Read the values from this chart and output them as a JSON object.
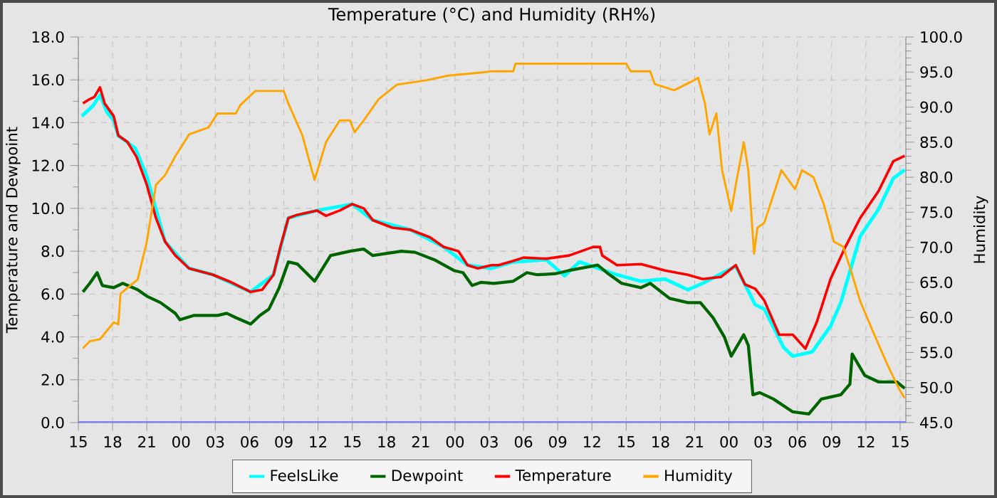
{
  "chart_data": {
    "type": "line",
    "title": "Temperature (°C) and Humidity (RH%)",
    "ylabel": "Temperature and Dewpoint",
    "y2label": "Humidity",
    "grid": true,
    "legend": "bottom",
    "marker": "none",
    "xlim": [
      15,
      87.5
    ],
    "xticks": [
      {
        "value": 15,
        "label": "15"
      },
      {
        "value": 18,
        "label": "18"
      },
      {
        "value": 21,
        "label": "21"
      },
      {
        "value": 24,
        "label": "00"
      },
      {
        "value": 27,
        "label": "03"
      },
      {
        "value": 30,
        "label": "06"
      },
      {
        "value": 33,
        "label": "09"
      },
      {
        "value": 36,
        "label": "12"
      },
      {
        "value": 39,
        "label": "15"
      },
      {
        "value": 42,
        "label": "18"
      },
      {
        "value": 45,
        "label": "21"
      },
      {
        "value": 48,
        "label": "00"
      },
      {
        "value": 51,
        "label": "03"
      },
      {
        "value": 54,
        "label": "06"
      },
      {
        "value": 57,
        "label": "09"
      },
      {
        "value": 60,
        "label": "12"
      },
      {
        "value": 63,
        "label": "15"
      },
      {
        "value": 66,
        "label": "18"
      },
      {
        "value": 69,
        "label": "21"
      },
      {
        "value": 72,
        "label": "00"
      },
      {
        "value": 75,
        "label": "03"
      },
      {
        "value": 78,
        "label": "06"
      },
      {
        "value": 81,
        "label": "09"
      },
      {
        "value": 84,
        "label": "12"
      },
      {
        "value": 87,
        "label": "15"
      }
    ],
    "ylim": [
      0,
      18
    ],
    "yticks": [
      {
        "value": 0,
        "label": "0.0"
      },
      {
        "value": 2,
        "label": "2.0"
      },
      {
        "value": 4,
        "label": "4.0"
      },
      {
        "value": 6,
        "label": "6.0"
      },
      {
        "value": 8,
        "label": "8.0"
      },
      {
        "value": 10,
        "label": "10.0"
      },
      {
        "value": 12,
        "label": "12.0"
      },
      {
        "value": 14,
        "label": "14.0"
      },
      {
        "value": 16,
        "label": "16.0"
      },
      {
        "value": 18,
        "label": "18.0"
      }
    ],
    "y2lim": [
      45,
      100
    ],
    "y2ticks": [
      {
        "value": 45,
        "label": "45.0"
      },
      {
        "value": 50,
        "label": "50.0"
      },
      {
        "value": 55,
        "label": "55.0"
      },
      {
        "value": 60,
        "label": "60.0"
      },
      {
        "value": 65,
        "label": "65.0"
      },
      {
        "value": 70,
        "label": "70.0"
      },
      {
        "value": 75,
        "label": "75.0"
      },
      {
        "value": 80,
        "label": "80.0"
      },
      {
        "value": 85,
        "label": "85.0"
      },
      {
        "value": 90,
        "label": "90.0"
      },
      {
        "value": 95,
        "label": "95.0"
      },
      {
        "value": 100,
        "label": "100.0"
      }
    ],
    "ref_lines": [
      {
        "axis": "y",
        "value": 0,
        "color": "#8080ff"
      }
    ],
    "series": [
      {
        "name": "FeelsLike",
        "color": "#00ffff",
        "x": [
          15.3,
          16.3,
          16.9,
          17.5,
          18.1,
          18.5,
          20,
          21,
          22.6,
          24.7,
          26.8,
          30.1,
          32.1,
          33.4,
          35.9,
          39,
          40.8,
          44.1,
          47,
          49.1,
          51.2,
          53.1,
          56,
          57.6,
          58.9,
          62.2,
          64.3,
          66.4,
          68.4,
          69.7,
          72.6,
          74.3,
          75.1,
          76.8,
          77.6,
          79.3,
          80.9,
          81.8,
          83.5,
          85.1,
          86.4,
          87.4
        ],
        "values": [
          14.3,
          14.8,
          15.3,
          14.5,
          14.1,
          13.4,
          12.8,
          11.5,
          8.45,
          7.2,
          6.9,
          6.1,
          6.9,
          9.55,
          9.9,
          10.2,
          9.45,
          9.0,
          8.2,
          7.35,
          7.2,
          7.5,
          7.6,
          6.85,
          7.5,
          6.9,
          6.6,
          6.7,
          6.2,
          6.5,
          7.3,
          5.5,
          5.3,
          3.5,
          3.1,
          3.3,
          4.5,
          5.6,
          8.7,
          9.95,
          11.4,
          11.8
        ]
      },
      {
        "name": "Dewpoint",
        "color": "#006400",
        "x": [
          15.4,
          16,
          16.65,
          17.1,
          18.1,
          18.9,
          20.2,
          21,
          22.2,
          23.5,
          23.9,
          25.1,
          27.2,
          28,
          28.8,
          30.1,
          30.9,
          31.7,
          32.6,
          33.4,
          34.2,
          35.7,
          37.1,
          38.8,
          40,
          40.8,
          43.3,
          44.5,
          46.2,
          47.9,
          48.7,
          49.5,
          50.3,
          51.4,
          53.1,
          54.3,
          55.2,
          56.8,
          58,
          60.5,
          61.3,
          62.6,
          64.3,
          65.1,
          66.8,
          68.4,
          69.5,
          70.6,
          71.6,
          72.2,
          73.3,
          73.7,
          74.1,
          74.7,
          75.9,
          77.6,
          79,
          80.1,
          81.8,
          82.6,
          82.8,
          83.9,
          85.1,
          86.7,
          87.4
        ],
        "values": [
          6.1,
          6.5,
          7.0,
          6.4,
          6.3,
          6.5,
          6.2,
          5.9,
          5.6,
          5.1,
          4.8,
          5.0,
          5.0,
          5.1,
          4.9,
          4.6,
          5.0,
          5.3,
          6.3,
          7.5,
          7.4,
          6.6,
          7.8,
          8.0,
          8.1,
          7.8,
          8.0,
          7.95,
          7.6,
          7.1,
          7.0,
          6.4,
          6.55,
          6.5,
          6.6,
          7.0,
          6.9,
          6.95,
          7.1,
          7.35,
          7.0,
          6.5,
          6.3,
          6.5,
          5.8,
          5.6,
          5.6,
          4.9,
          4.0,
          3.1,
          4.1,
          3.6,
          1.3,
          1.4,
          1.1,
          0.5,
          0.4,
          1.1,
          1.3,
          1.8,
          3.2,
          2.2,
          1.9,
          1.9,
          1.6
        ]
      },
      {
        "name": "Temperature",
        "color": "#ff0000",
        "x": [
          15.4,
          16,
          16.4,
          16.9,
          17.3,
          18.1,
          18.5,
          19.3,
          20.1,
          21,
          21.8,
          22.6,
          23.5,
          24.7,
          26.8,
          28.4,
          30.1,
          31.1,
          32.1,
          32.7,
          33.4,
          34.2,
          35.9,
          36.7,
          37.9,
          39,
          40,
          40.8,
          42.5,
          44.1,
          45.8,
          47,
          48.3,
          49.1,
          50,
          51.2,
          51.8,
          53.1,
          54,
          56,
          58,
          60.1,
          60.7,
          60.9,
          62.2,
          64.3,
          66.4,
          68.4,
          69.7,
          71.3,
          72.6,
          73.4,
          74.3,
          75.1,
          76.4,
          77.6,
          78.7,
          79.7,
          80.9,
          82.2,
          83.5,
          85.1,
          86.4,
          87.4
        ],
        "values": [
          14.9,
          15.1,
          15.2,
          15.65,
          14.9,
          14.3,
          13.4,
          13.1,
          12.4,
          11.1,
          9.55,
          8.45,
          7.8,
          7.2,
          6.9,
          6.55,
          6.1,
          6.2,
          6.9,
          8.2,
          9.55,
          9.7,
          9.9,
          9.65,
          9.9,
          10.2,
          10.0,
          9.45,
          9.1,
          9.0,
          8.65,
          8.2,
          8.0,
          7.35,
          7.2,
          7.35,
          7.35,
          7.55,
          7.7,
          7.65,
          7.8,
          8.2,
          8.2,
          7.8,
          7.35,
          7.4,
          7.1,
          6.9,
          6.7,
          6.8,
          7.35,
          6.45,
          6.25,
          5.7,
          4.1,
          4.1,
          3.45,
          4.7,
          6.7,
          8.2,
          9.55,
          10.8,
          12.2,
          12.45
        ]
      },
      {
        "name": "Humidity",
        "color": "#ffa500",
        "axis": "y2",
        "x": [
          15.4,
          16,
          16.9,
          18.1,
          18.5,
          18.7,
          20.2,
          21,
          21.8,
          22.6,
          23.5,
          24.7,
          26.4,
          27.2,
          28.8,
          29.2,
          30.5,
          33,
          33.4,
          34.6,
          35.7,
          36.7,
          37.9,
          38.8,
          39.2,
          40,
          41.3,
          42.9,
          45.4,
          47.4,
          50.1,
          51.2,
          53.1,
          53.3,
          63,
          63.4,
          65.1,
          65.5,
          67.2,
          68.9,
          69.3,
          69.9,
          70.3,
          70.9,
          71.4,
          72.2,
          72.6,
          73.3,
          73.7,
          74.2,
          74.5,
          75.1,
          76.6,
          77.8,
          78.4,
          79.4,
          80.3,
          81.2,
          82,
          82.8,
          83.5,
          84.8,
          85.9,
          86.9,
          87.4
        ],
        "values": [
          55.6,
          56.6,
          56.9,
          59.3,
          59,
          63.4,
          65.4,
          70.8,
          78.9,
          80.3,
          83.0,
          86.1,
          87.1,
          89.1,
          89.1,
          90.3,
          92.3,
          92.3,
          90.5,
          86.1,
          79.6,
          85.0,
          88.1,
          88.1,
          86.4,
          88.1,
          91.1,
          93.2,
          93.8,
          94.5,
          94.9,
          95.1,
          95.1,
          96.2,
          96.2,
          95.1,
          95.1,
          93.3,
          92.4,
          93.8,
          94.2,
          90.5,
          86.1,
          89.1,
          81.0,
          75.2,
          78.9,
          85.0,
          81.0,
          69.1,
          72.8,
          73.5,
          81.0,
          78.3,
          81.0,
          80.0,
          76.2,
          70.8,
          70.1,
          66.1,
          62.3,
          57.3,
          53.2,
          49.8,
          48.5
        ]
      }
    ]
  }
}
